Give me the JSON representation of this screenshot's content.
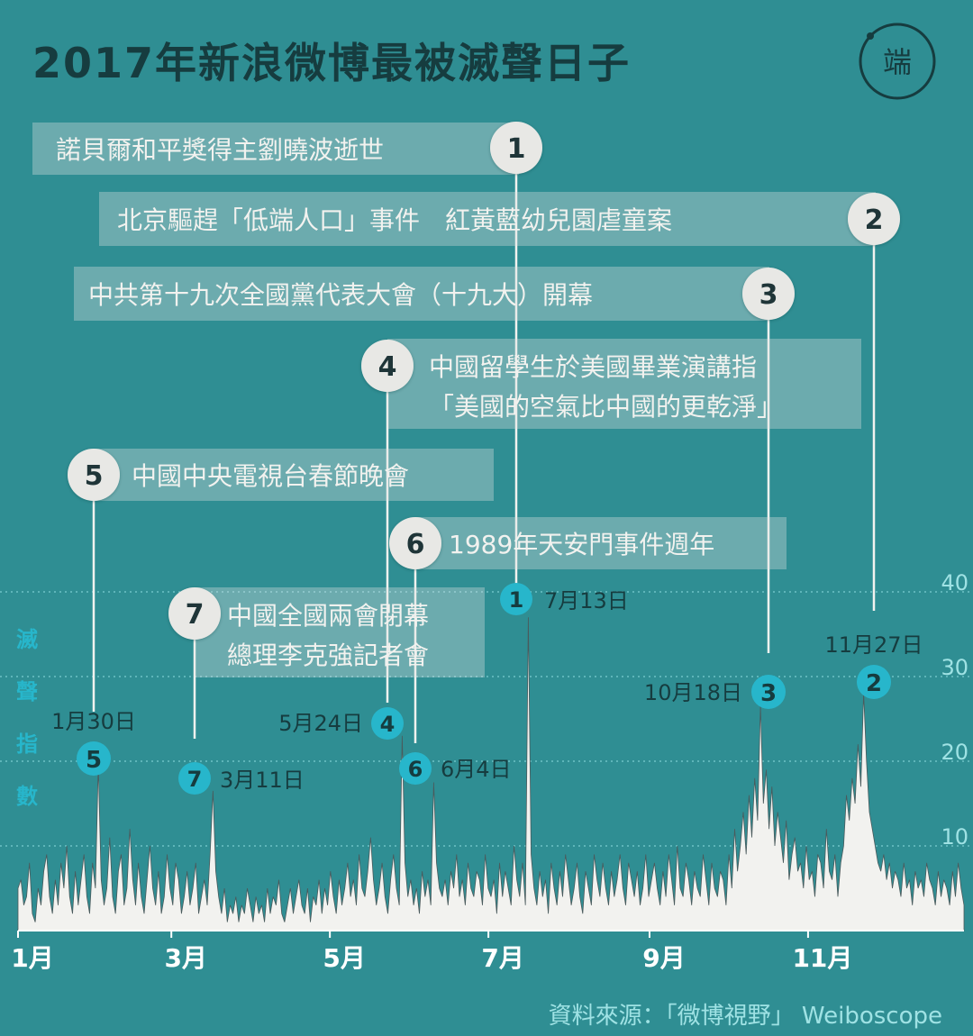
{
  "title": "2017年新浪微博最被滅聲日子",
  "logo_text": "端",
  "y_axis_label": [
    "滅",
    "聲",
    "指",
    "數"
  ],
  "source": "資料來源：「微博視野」 Weiboscope",
  "colors": {
    "background": "#2f8e93",
    "area": "#f2f2ef",
    "title": "#163c3f",
    "axis_text": "#9fe2e4",
    "marker": "#27b6cb",
    "bubble": "#e8e8e5",
    "callout_box": "#dfe3e1",
    "callout_text": "#1f3538",
    "grid": "#6fc2c6"
  },
  "events": [
    {
      "id": "1",
      "label": "諾貝爾和平獎得主劉曉波逝世",
      "date": "7月13日"
    },
    {
      "id": "2",
      "label": "北京驅趕「低端人口」事件　紅黃藍幼兒園虐童案",
      "date": "11月27日"
    },
    {
      "id": "3",
      "label": "中共第十九次全國黨代表大會（十九大）開幕",
      "date": "10月18日"
    },
    {
      "id": "4",
      "label": "中國留學生於美國畢業演講指",
      "label2": "「美國的空氣比中國的更乾淨」",
      "date": "5月24日"
    },
    {
      "id": "5",
      "label": "中國中央電視台春節晚會",
      "date": "1月30日"
    },
    {
      "id": "6",
      "label": "1989年天安門事件週年",
      "date": "6月4日"
    },
    {
      "id": "7",
      "label": "中國全國兩會閉幕",
      "label2": "總理李克強記者會",
      "date": "3月11日"
    }
  ],
  "chart_data": {
    "type": "area",
    "title": "2017年新浪微博最被滅聲日子",
    "ylabel": "滅聲指數",
    "xlabel": "",
    "x_ticks": [
      "1月",
      "3月",
      "5月",
      "7月",
      "9月",
      "11月"
    ],
    "x_tick_days": [
      1,
      60,
      121,
      182,
      244,
      305
    ],
    "y_ticks": [
      10,
      20,
      30,
      40
    ],
    "ylim": [
      0,
      42
    ],
    "xlim": [
      1,
      365
    ],
    "grid": "dotted horizontal",
    "peaks": [
      {
        "event": "5",
        "date": "1月30日",
        "day": 30,
        "value": 19.5
      },
      {
        "event": "7",
        "date": "3月11日",
        "day": 70,
        "value": 16.5
      },
      {
        "event": "4",
        "date": "5月24日",
        "day": 144,
        "value": 23
      },
      {
        "event": "6",
        "date": "6月4日",
        "day": 155,
        "value": 17.5
      },
      {
        "event": "1",
        "date": "7月13日",
        "day": 194,
        "value": 37
      },
      {
        "event": "3",
        "date": "10月18日",
        "day": 291,
        "value": 26.5
      },
      {
        "event": "2",
        "date": "11月27日",
        "day": 331,
        "value": 28
      }
    ],
    "series": [
      {
        "values": [
          5,
          6,
          3,
          4,
          8,
          2,
          1,
          5,
          3,
          7,
          9,
          4,
          2,
          6,
          3,
          8,
          5,
          10,
          4,
          2,
          7,
          3,
          6,
          9,
          4,
          2,
          8,
          5,
          19.5,
          6,
          3,
          5,
          11,
          4,
          2,
          7,
          9,
          3,
          5,
          12,
          6,
          3,
          8,
          4,
          2,
          6,
          10,
          5,
          3,
          7,
          2,
          4,
          9,
          5,
          3,
          8,
          6,
          2,
          4,
          7,
          3,
          5,
          8,
          2,
          4,
          6,
          3,
          9,
          16.5,
          7,
          4,
          2,
          5,
          1,
          3,
          2,
          4,
          1,
          3,
          2,
          5,
          3,
          1,
          4,
          2,
          3,
          1,
          5,
          2,
          4,
          3,
          6,
          2,
          1,
          3,
          5,
          2,
          4,
          6,
          3,
          2,
          5,
          1,
          4,
          3,
          6,
          2,
          5,
          3,
          7,
          4,
          2,
          6,
          3,
          5,
          8,
          4,
          6,
          3,
          9,
          5,
          4,
          7,
          11,
          6,
          3,
          5,
          8,
          4,
          2,
          6,
          9,
          5,
          3,
          23,
          8,
          4,
          6,
          3,
          5,
          2,
          7,
          4,
          6,
          3,
          17.5,
          8,
          5,
          4,
          6,
          3,
          7,
          5,
          9,
          4,
          6,
          3,
          8,
          5,
          4,
          7,
          6,
          3,
          9,
          5,
          4,
          6,
          2,
          8,
          4,
          7,
          5,
          3,
          10,
          6,
          4,
          8,
          3,
          37,
          9,
          5,
          3,
          7,
          4,
          6,
          2,
          8,
          5,
          3,
          7,
          4,
          9,
          6,
          3,
          5,
          8,
          4,
          2,
          7,
          5,
          3,
          9,
          6,
          4,
          8,
          5,
          3,
          7,
          4,
          6,
          9,
          5,
          3,
          8,
          6,
          4,
          7,
          3,
          5,
          9,
          4,
          6,
          8,
          5,
          3,
          7,
          4,
          9,
          6,
          3,
          10,
          5,
          4,
          8,
          6,
          3,
          7,
          5,
          4,
          9,
          6,
          3,
          8,
          5,
          4,
          7,
          6,
          3,
          9,
          5,
          12,
          7,
          10,
          14,
          9,
          16,
          11,
          18,
          13,
          26.5,
          15,
          19,
          12,
          17,
          10,
          14,
          11,
          8,
          13,
          6,
          9,
          11,
          7,
          8,
          5,
          10,
          6,
          7,
          4,
          9,
          8,
          5,
          12,
          7,
          6,
          9,
          4,
          8,
          10,
          16,
          13,
          18,
          15,
          22,
          17,
          28,
          20,
          14,
          12,
          10,
          8,
          7,
          9,
          6,
          8,
          5,
          7,
          6,
          4,
          8,
          5,
          6,
          3,
          7,
          5,
          6,
          4,
          8,
          6,
          5,
          3,
          7,
          4,
          6,
          5,
          3,
          7,
          4,
          8,
          5,
          3
        ]
      }
    ]
  }
}
